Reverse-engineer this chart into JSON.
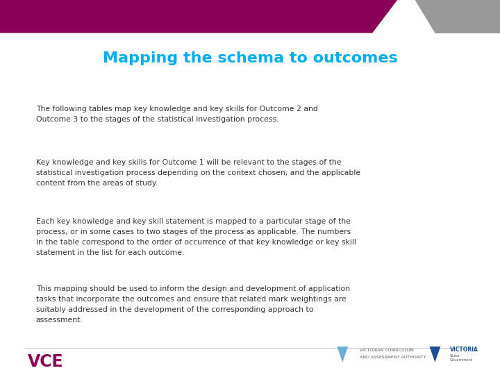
{
  "title": "Mapping the schema to outcomes",
  "title_color": "#00AEEF",
  "title_fontsize": 16,
  "title_bold": true,
  "body_color": "#333333",
  "body_fontsize": 7.8,
  "background_color": "#ffffff",
  "header_bar_color": "#8B0057",
  "header_bar_gray": "#999999",
  "vce_color": "#8B0057",
  "vce_text": "VCE",
  "paragraph1": "The following tables map key knowledge and key skills for Outcome 2 and\nOutcome 3 to the stages of the statistical investigation process.",
  "paragraph2": "Key knowledge and key skills for Outcome 1 will be relevant to the stages of the\nstatistical investigation process depending on the context chosen, and the applicable\ncontent from the areas of study.",
  "paragraph3": "Each key knowledge and key skill statement is mapped to a particular stage of the\nprocess, or in some cases to two stages of the process as applicable. The numbers\nin the table correspond to the order of occurrence of that key knowledge or key skill\nstatement in the list for each outcome.",
  "paragraph4": "This mapping should be used to inform the design and development of application\ntasks that incorporate the outcomes and ensure that related mark weightings are\nsuitably addressed in the development of the corresponding approach to\nassessment."
}
